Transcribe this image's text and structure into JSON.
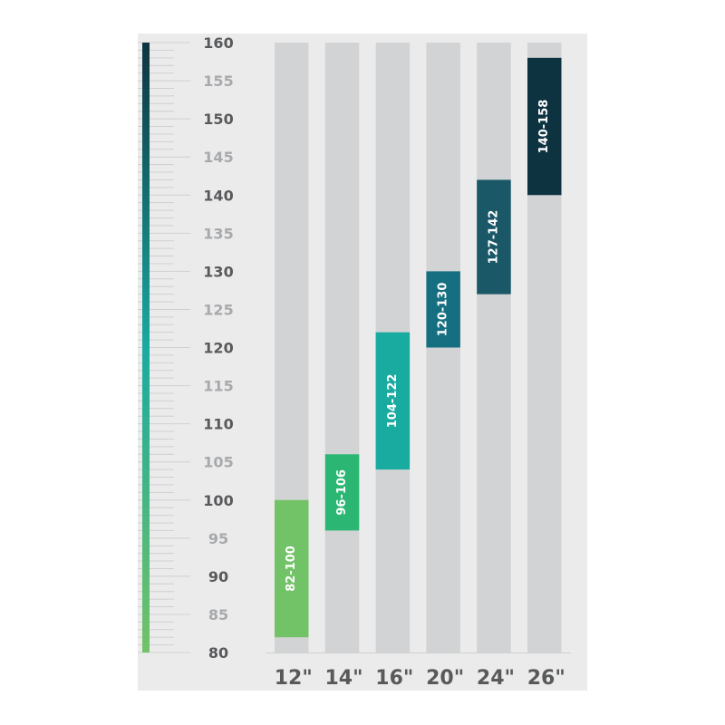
{
  "chart_data": {
    "type": "bar",
    "subtype": "floating-range",
    "categories": [
      "12\"",
      "14\"",
      "16\"",
      "20\"",
      "24\"",
      "26\""
    ],
    "ranges": [
      {
        "low": 82,
        "high": 100,
        "label": "82-100",
        "color": "#72c267"
      },
      {
        "low": 96,
        "high": 106,
        "label": "96-106",
        "color": "#2bb673"
      },
      {
        "low": 104,
        "high": 122,
        "label": "104-122",
        "color": "#19aaa0"
      },
      {
        "low": 120,
        "high": 130,
        "label": "120-130",
        "color": "#166f80"
      },
      {
        "low": 127,
        "high": 142,
        "label": "127-142",
        "color": "#1a5767"
      },
      {
        "low": 140,
        "high": 158,
        "label": "140-158",
        "color": "#0e3340"
      }
    ],
    "ylim": [
      80,
      160
    ],
    "yticks": [
      "80",
      "85",
      "90",
      "95",
      "100",
      "105",
      "110",
      "115",
      "120",
      "125",
      "130",
      "135",
      "140",
      "145",
      "150",
      "155",
      "160"
    ],
    "scale_gradient": [
      "#72c267",
      "#19aaa0",
      "#0e3340"
    ],
    "background_bar_color": "#d2d3d4",
    "panel_color": "#ebebeb",
    "grid": false,
    "legend": "none"
  }
}
